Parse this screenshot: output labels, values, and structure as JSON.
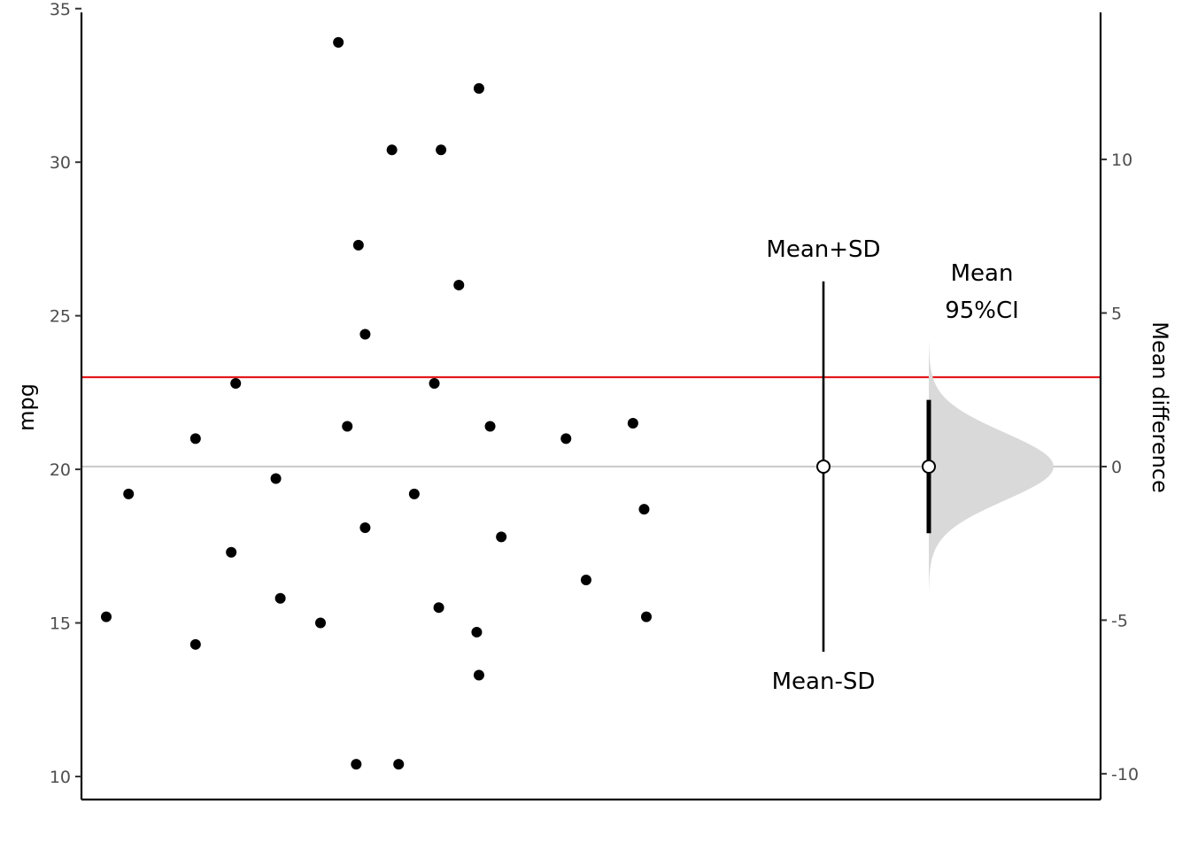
{
  "chart_data": {
    "type": "scatter",
    "ylabel": "mpg",
    "y2label": "Mean difference",
    "ylim": [
      9.25,
      35.05
    ],
    "yticks": [
      10,
      15,
      20,
      25,
      30,
      35
    ],
    "y2ticks": [
      -10,
      -5,
      0,
      5,
      10
    ],
    "y2_offset": 20.09,
    "points": [
      {
        "x": 1.0,
        "y": 15.2
      },
      {
        "x": 1.5,
        "y": 19.2
      },
      {
        "x": 3.0,
        "y": 21.0
      },
      {
        "x": 3.0,
        "y": 14.3
      },
      {
        "x": 3.8,
        "y": 17.3
      },
      {
        "x": 3.9,
        "y": 22.8
      },
      {
        "x": 4.8,
        "y": 19.7
      },
      {
        "x": 4.9,
        "y": 15.8
      },
      {
        "x": 5.8,
        "y": 15.0
      },
      {
        "x": 6.2,
        "y": 33.9
      },
      {
        "x": 6.4,
        "y": 21.4
      },
      {
        "x": 6.6,
        "y": 10.4
      },
      {
        "x": 6.65,
        "y": 27.3
      },
      {
        "x": 6.8,
        "y": 24.4
      },
      {
        "x": 6.8,
        "y": 18.1
      },
      {
        "x": 7.4,
        "y": 30.4
      },
      {
        "x": 7.55,
        "y": 10.4
      },
      {
        "x": 7.9,
        "y": 19.2
      },
      {
        "x": 8.35,
        "y": 22.8
      },
      {
        "x": 8.45,
        "y": 15.5
      },
      {
        "x": 8.5,
        "y": 30.4
      },
      {
        "x": 8.9,
        "y": 26.0
      },
      {
        "x": 9.3,
        "y": 14.7
      },
      {
        "x": 9.35,
        "y": 32.4
      },
      {
        "x": 9.35,
        "y": 13.3
      },
      {
        "x": 9.6,
        "y": 21.4
      },
      {
        "x": 9.85,
        "y": 17.8
      },
      {
        "x": 11.3,
        "y": 21.0
      },
      {
        "x": 11.75,
        "y": 16.4
      },
      {
        "x": 12.8,
        "y": 21.5
      },
      {
        "x": 13.05,
        "y": 18.7
      },
      {
        "x": 13.1,
        "y": 15.2
      }
    ],
    "reference_line": {
      "y": 23.0,
      "color": "#e41a1c"
    },
    "zero_line": {
      "y": 20.09,
      "color": "#cccccc"
    },
    "mean_sd": {
      "mean": 20.09,
      "upper": 26.12,
      "lower": 14.06,
      "label_upper": "Mean+SD",
      "label_lower": "Mean-SD"
    },
    "mean_ci": {
      "mean": 20.09,
      "lower": 17.92,
      "upper": 22.26,
      "label_line1": "Mean",
      "label_line2": "95%CI"
    },
    "ci_density_color": "#d9d9d9",
    "point_color": "#000000",
    "grid": false
  }
}
